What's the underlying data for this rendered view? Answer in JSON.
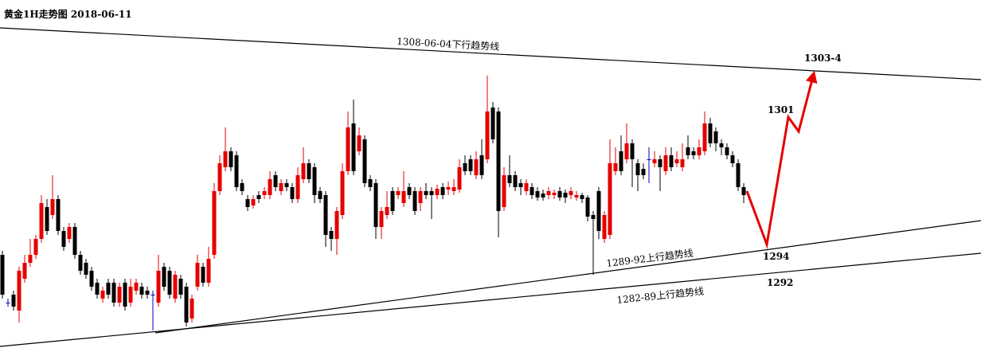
{
  "chart_data": {
    "type": "candlestick",
    "title": "黄金1H走势图 2018-06-11",
    "ylim": [
      1286.15,
      1308
    ],
    "up_color": "#e60000",
    "down_color": "#000000",
    "flat_color": "#0000cc",
    "annotations": [
      "1308-06-04下行趋势线",
      "1303-4",
      "1301",
      "1294",
      "1292",
      "1289-92上行趋势线",
      "1282-89上行趋势线"
    ],
    "ohlc": [
      [
        1292,
        1292.25,
        1289.25,
        1289.5
      ],
      [
        1289,
        1289.25,
        1288.75,
        1289
      ],
      [
        1289.5,
        1289.75,
        1288.5,
        1288.75
      ],
      [
        1288.5,
        1291.25,
        1287.75,
        1291
      ],
      [
        1290.5,
        1292,
        1290.25,
        1291.5
      ],
      [
        1291.5,
        1293,
        1291.25,
        1292
      ],
      [
        1292,
        1293.25,
        1291.75,
        1293
      ],
      [
        1293,
        1295.75,
        1292.75,
        1295.25
      ],
      [
        1295,
        1295.5,
        1293.25,
        1293.5
      ],
      [
        1294.5,
        1297,
        1294.25,
        1295.5
      ],
      [
        1295.5,
        1295.75,
        1293.25,
        1293.5
      ],
      [
        1293.5,
        1293.75,
        1292.25,
        1292.5
      ],
      [
        1293,
        1294,
        1292.75,
        1293.75
      ],
      [
        1293.75,
        1294,
        1291.75,
        1292
      ],
      [
        1292,
        1292.25,
        1290.75,
        1291
      ],
      [
        1291.5,
        1291.75,
        1290.5,
        1290.75
      ],
      [
        1291,
        1291.25,
        1289.75,
        1290
      ],
      [
        1290.25,
        1290.5,
        1289.25,
        1289.5
      ],
      [
        1289.25,
        1290,
        1289,
        1289.75
      ],
      [
        1290.25,
        1290.5,
        1289.25,
        1289.5
      ],
      [
        1290.25,
        1290.5,
        1288.75,
        1289
      ],
      [
        1289,
        1290.25,
        1288.75,
        1290
      ],
      [
        1290.25,
        1290.5,
        1288.5,
        1288.75
      ],
      [
        1289,
        1290.5,
        1288.75,
        1290
      ],
      [
        1289.75,
        1290.5,
        1289.5,
        1290.25
      ],
      [
        1290,
        1290.25,
        1289.25,
        1289.5
      ],
      [
        1289.75,
        1290,
        1289.25,
        1289.5
      ],
      [
        1289.5,
        1289.75,
        1287.25,
        1289.5
      ],
      [
        1289,
        1292,
        1288.75,
        1291
      ],
      [
        1291.25,
        1291.5,
        1289.75,
        1290
      ],
      [
        1291,
        1291.25,
        1289.25,
        1289.5
      ],
      [
        1289.25,
        1291,
        1289,
        1290.75
      ],
      [
        1290.5,
        1290.75,
        1289.25,
        1289.5
      ],
      [
        1290,
        1290.25,
        1287.5,
        1287.75
      ],
      [
        1288,
        1289.5,
        1287.75,
        1289.25
      ],
      [
        1290,
        1292,
        1289.75,
        1291.5
      ],
      [
        1291.25,
        1291.5,
        1290,
        1290.25
      ],
      [
        1290.25,
        1292.5,
        1290,
        1291.75
      ],
      [
        1292,
        1296.5,
        1291.75,
        1296
      ],
      [
        1296,
        1298.25,
        1295.75,
        1297.75
      ],
      [
        1297.5,
        1300,
        1297.25,
        1298.5
      ],
      [
        1298.5,
        1298.75,
        1297.25,
        1297.5
      ],
      [
        1298.25,
        1298.5,
        1296,
        1296.25
      ],
      [
        1296.5,
        1296.75,
        1295.75,
        1296
      ],
      [
        1295.5,
        1295.75,
        1294.75,
        1295
      ],
      [
        1295.1,
        1295.75,
        1294.9,
        1295.5
      ],
      [
        1295.75,
        1296,
        1295.25,
        1295.5
      ],
      [
        1295.75,
        1296.25,
        1295.5,
        1296
      ],
      [
        1295.75,
        1297.25,
        1295.5,
        1296.75
      ],
      [
        1297,
        1297.25,
        1296,
        1296.25
      ],
      [
        1296,
        1296.75,
        1295.75,
        1296.5
      ],
      [
        1296.5,
        1296.75,
        1296,
        1296.25
      ],
      [
        1296.25,
        1296.5,
        1295.25,
        1295.5
      ],
      [
        1295.5,
        1297.5,
        1295.25,
        1297
      ],
      [
        1296.75,
        1298.75,
        1296.5,
        1297.75
      ],
      [
        1297.75,
        1298,
        1296.5,
        1296.75
      ],
      [
        1297.5,
        1297.75,
        1295.25,
        1295.75
      ],
      [
        1296,
        1296.25,
        1295.25,
        1295.5
      ],
      [
        1295.75,
        1296,
        1292.5,
        1293.25
      ],
      [
        1293.5,
        1293.75,
        1292.25,
        1293
      ],
      [
        1293,
        1295,
        1292,
        1294.75
      ],
      [
        1294.5,
        1297.75,
        1294.25,
        1297.25
      ],
      [
        1297.25,
        1301,
        1297,
        1300
      ],
      [
        1300.25,
        1301.75,
        1297,
        1297.25
      ],
      [
        1298.5,
        1300,
        1298.25,
        1299.5
      ],
      [
        1299.25,
        1299.5,
        1296.25,
        1296.5
      ],
      [
        1296.75,
        1297,
        1296,
        1296.25
      ],
      [
        1296.5,
        1296.75,
        1293,
        1293.75
      ],
      [
        1293.75,
        1295,
        1293,
        1294.75
      ],
      [
        1294.5,
        1296,
        1294.25,
        1295
      ],
      [
        1296,
        1296.25,
        1294.5,
        1294.75
      ],
      [
        1295.75,
        1296.25,
        1295.5,
        1296
      ],
      [
        1295.25,
        1297.25,
        1295,
        1296
      ],
      [
        1296.25,
        1296.5,
        1295.5,
        1295.75
      ],
      [
        1296,
        1296.25,
        1294.5,
        1294.75
      ],
      [
        1295.25,
        1296.25,
        1294.75,
        1296
      ],
      [
        1296,
        1296.5,
        1295.5,
        1295.75
      ],
      [
        1296,
        1296.25,
        1294.25,
        1295.75
      ],
      [
        1295.75,
        1296.4,
        1295.5,
        1296.15
      ],
      [
        1296.25,
        1296.5,
        1295.5,
        1295.75
      ],
      [
        1296.1,
        1296.6,
        1295.75,
        1296.25
      ],
      [
        1296,
        1296.75,
        1295.75,
        1296.25
      ],
      [
        1296.1,
        1298,
        1295.9,
        1297.5
      ],
      [
        1297.75,
        1298.25,
        1297,
        1297.25
      ],
      [
        1298,
        1298.25,
        1297,
        1297.25
      ],
      [
        1297,
        1298.5,
        1296.75,
        1298
      ],
      [
        1298.25,
        1299.25,
        1296.75,
        1297
      ],
      [
        1298,
        1303.25,
        1297.75,
        1301
      ],
      [
        1301.25,
        1301.6,
        1299,
        1299.25
      ],
      [
        1301,
        1301.25,
        1293.1,
        1294.75
      ],
      [
        1295,
        1297.5,
        1294.75,
        1297
      ],
      [
        1297,
        1298.25,
        1296.25,
        1296.5
      ],
      [
        1297,
        1297.25,
        1296,
        1296.25
      ],
      [
        1296.5,
        1296.75,
        1295.75,
        1296.25
      ],
      [
        1296,
        1296.75,
        1295.75,
        1296.5
      ],
      [
        1296.25,
        1296.5,
        1295.5,
        1295.75
      ],
      [
        1296,
        1296.25,
        1295.4,
        1295.6
      ],
      [
        1295.85,
        1296.1,
        1295.4,
        1295.6
      ],
      [
        1295.75,
        1296.25,
        1295.5,
        1296
      ],
      [
        1295.75,
        1296.1,
        1295.5,
        1295.9
      ],
      [
        1296,
        1296.25,
        1295.4,
        1295.6
      ],
      [
        1295.9,
        1296.1,
        1295.25,
        1295.6
      ],
      [
        1295.75,
        1296.25,
        1295.5,
        1296
      ],
      [
        1295.6,
        1296,
        1295.4,
        1295.75
      ],
      [
        1295.75,
        1295.9,
        1295.25,
        1295.5
      ],
      [
        1295.6,
        1295.75,
        1294.1,
        1294.4
      ],
      [
        1294.5,
        1294.75,
        1290.75,
        1294.25
      ],
      [
        1296,
        1296.25,
        1293,
        1293.5
      ],
      [
        1293,
        1294.75,
        1292.75,
        1294.5
      ],
      [
        1293.25,
        1299.25,
        1293,
        1297.75
      ],
      [
        1297.25,
        1298.75,
        1297,
        1297.75
      ],
      [
        1298.5,
        1299.5,
        1297,
        1297.25
      ],
      [
        1298,
        1300.25,
        1297.75,
        1299
      ],
      [
        1299,
        1299.25,
        1296.25,
        1298
      ],
      [
        1297.75,
        1298,
        1296,
        1297
      ],
      [
        1297.4,
        1297.75,
        1296.75,
        1297
      ],
      [
        1298,
        1298.75,
        1296.5,
        1298
      ],
      [
        1297.75,
        1298.5,
        1297.5,
        1298
      ],
      [
        1298,
        1298.25,
        1296,
        1297.5
      ],
      [
        1297.25,
        1298.75,
        1297,
        1298.25
      ],
      [
        1298.25,
        1298.75,
        1297.25,
        1297.5
      ],
      [
        1297.75,
        1298.5,
        1297.5,
        1298
      ],
      [
        1297.5,
        1299,
        1297.25,
        1298
      ],
      [
        1298.75,
        1299.5,
        1298,
        1298.25
      ],
      [
        1298.5,
        1298.75,
        1298,
        1298.25
      ],
      [
        1298.25,
        1299.25,
        1298,
        1298.75
      ],
      [
        1298.5,
        1301,
        1298.25,
        1300.25
      ],
      [
        1300.25,
        1300.6,
        1298.75,
        1299
      ],
      [
        1299.75,
        1300,
        1298.5,
        1299
      ],
      [
        1299,
        1299.25,
        1298.25,
        1298.75
      ],
      [
        1298.75,
        1299,
        1298,
        1298.25
      ],
      [
        1298.25,
        1298.5,
        1297.5,
        1297.75
      ],
      [
        1297.75,
        1298,
        1296,
        1296.25
      ],
      [
        1296.25,
        1296.5,
        1295.25,
        1295.75
      ]
    ]
  }
}
